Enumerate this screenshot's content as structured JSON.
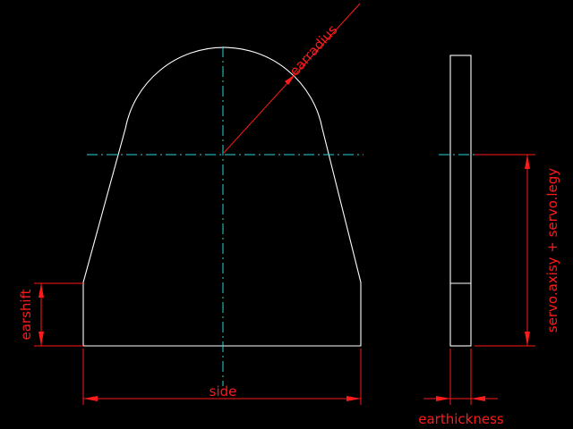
{
  "colors": {
    "background": "#000000",
    "geometry": "#ffffff",
    "centerlines": "#26d6d6",
    "dimensions": "#ff1a1a"
  },
  "dimensions": {
    "earradius": "earradius",
    "side": "side",
    "earshift": "earshift",
    "earthickness": "earthickness",
    "servo_height": "servo.axisy + servo.legy"
  }
}
